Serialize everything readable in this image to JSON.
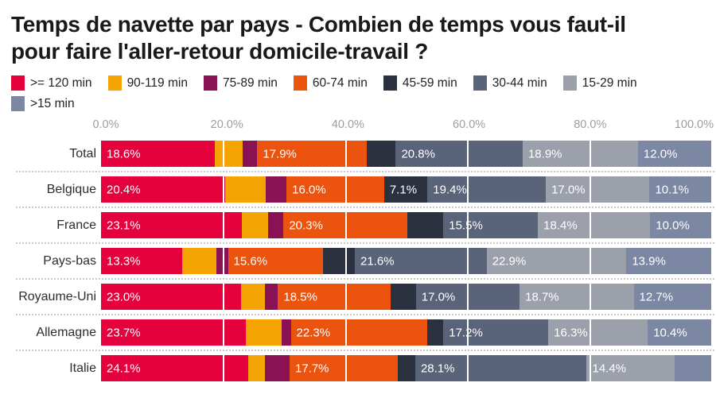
{
  "title_lines": [
    "Temps de navette par pays - Combien de temps vous faut-il",
    "pour faire l'aller-retour domicile-travail ?"
  ],
  "legend": {
    "items": [
      {
        "label": ">= 120 min",
        "color": "#E4013C"
      },
      {
        "label": "90-119 min",
        "color": "#F5A503"
      },
      {
        "label": "75-89 min",
        "color": "#891254"
      },
      {
        "label": "60-74 min",
        "color": "#EB530F"
      },
      {
        "label": "45-59 min",
        "color": "#2B313F"
      },
      {
        "label": "30-44 min",
        "color": "#596379"
      },
      {
        "label": "15-29 min",
        "color": "#9BA0AA"
      },
      {
        "label": ">15 min",
        "color": "#7B87A3"
      }
    ]
  },
  "chart_data": {
    "type": "bar",
    "orientation": "horizontal",
    "stacked": true,
    "title": "Temps de navette par pays - Combien de temps vous faut-il pour faire l'aller-retour domicile-travail ?",
    "unit": "%",
    "xlim": [
      0,
      100
    ],
    "x_tick_labels": [
      "0.0%",
      "20.0%",
      "40.0%",
      "60.0%",
      "80.0%",
      "100.0%"
    ],
    "x_tick_values": [
      0,
      20,
      40,
      60,
      80,
      100
    ],
    "gridline_values": [
      20,
      40,
      60,
      80
    ],
    "categories": [
      "Total",
      "Belgique",
      "France",
      "Pays-bas",
      "Royaume-Uni",
      "Allemagne",
      "Italie"
    ],
    "series": [
      {
        "name": ">= 120 min",
        "color": "#E4013C",
        "values": [
          18.6,
          20.4,
          23.1,
          13.3,
          23.0,
          23.7,
          24.1
        ]
      },
      {
        "name": "90-119 min",
        "color": "#F5A503",
        "values": [
          4.6,
          6.6,
          4.3,
          5.6,
          3.8,
          5.9,
          2.7
        ]
      },
      {
        "name": "75-89 min",
        "color": "#891254",
        "values": [
          2.4,
          3.4,
          2.5,
          1.9,
          2.2,
          1.5,
          4.1
        ]
      },
      {
        "name": "60-74 min",
        "color": "#EB530F",
        "values": [
          17.9,
          16.0,
          20.3,
          15.6,
          18.5,
          22.3,
          17.7
        ]
      },
      {
        "name": "45-59 min",
        "color": "#2B313F",
        "values": [
          4.8,
          7.1,
          5.9,
          5.2,
          4.1,
          2.7,
          2.9
        ]
      },
      {
        "name": "30-44 min",
        "color": "#596379",
        "values": [
          20.8,
          19.4,
          15.5,
          21.6,
          17.0,
          17.2,
          28.1
        ]
      },
      {
        "name": "15-29 min",
        "color": "#9BA0AA",
        "values": [
          18.9,
          17.0,
          18.4,
          22.9,
          18.7,
          16.3,
          14.4
        ]
      },
      {
        "name": ">15 min",
        "color": "#7B87A3",
        "values": [
          12.0,
          10.1,
          10.0,
          13.9,
          12.7,
          10.4,
          6.0
        ]
      }
    ],
    "labels_shown": [
      [
        true,
        false,
        false,
        true,
        false,
        true,
        true,
        true
      ],
      [
        true,
        false,
        false,
        true,
        true,
        true,
        true,
        true
      ],
      [
        true,
        false,
        false,
        true,
        false,
        true,
        true,
        true
      ],
      [
        true,
        false,
        false,
        true,
        false,
        true,
        true,
        true
      ],
      [
        true,
        false,
        false,
        true,
        false,
        true,
        true,
        true
      ],
      [
        true,
        false,
        false,
        true,
        false,
        true,
        true,
        true
      ],
      [
        true,
        false,
        false,
        true,
        false,
        true,
        true,
        false
      ]
    ]
  }
}
